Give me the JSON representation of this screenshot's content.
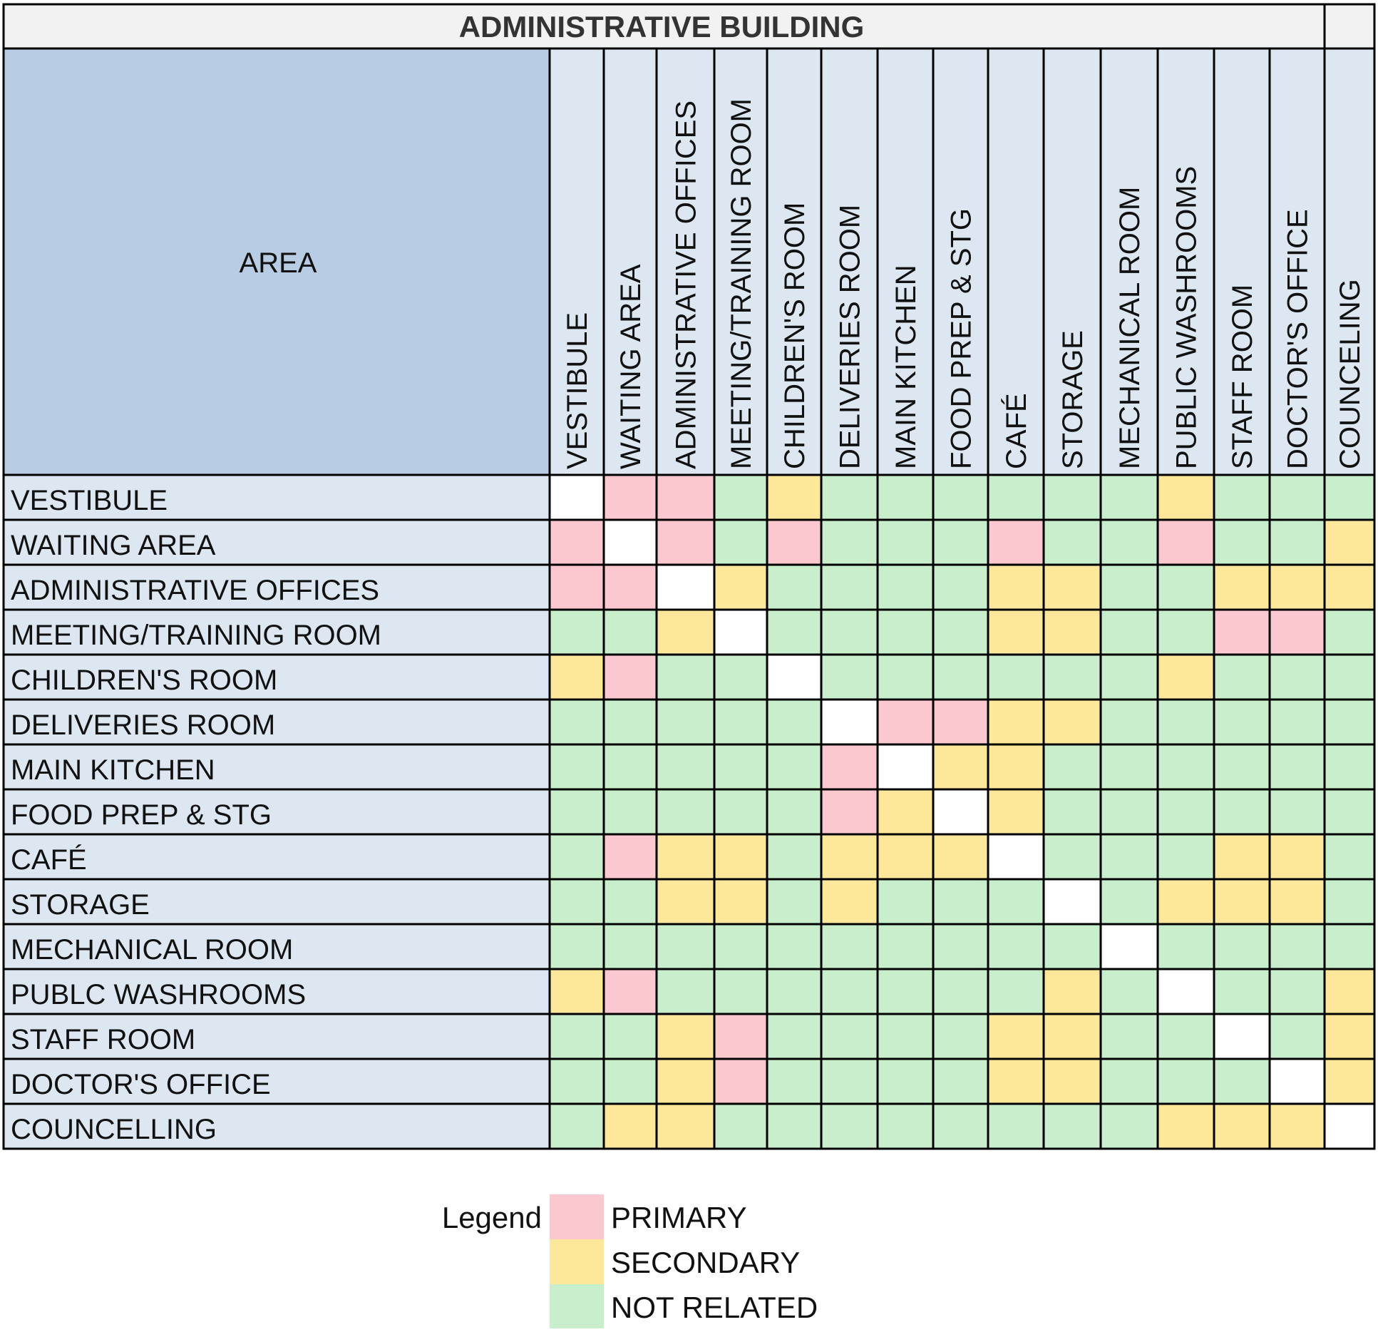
{
  "colors": {
    "primary": "#fcc8d0",
    "secondary": "#fde79b",
    "not_related": "#c8eecb",
    "self": "#ffffff",
    "header_light": "#dde7f1",
    "area_header": "#b8cde3",
    "title_bg": "#f2f2f2",
    "grid_line": "#000000"
  },
  "chart_data": {
    "type": "table",
    "title": "ADMINISTRATIVE BUILDING",
    "corner_label": "AREA",
    "columns": [
      "VESTIBULE",
      "WAITING AREA",
      "ADMINISTRATIVE OFFICES",
      "MEETING/TRAINING ROOM",
      "CHILDREN'S ROOM",
      "DELIVERIES ROOM",
      "MAIN KITCHEN",
      "FOOD PREP & STG",
      "CAFÉ",
      "STORAGE",
      "MECHANICAL ROOM",
      "PUBLIC WASHROOMS",
      "STAFF ROOM",
      "DOCTOR'S OFFICE",
      "COUNCELING"
    ],
    "rows": [
      "VESTIBULE",
      "WAITING AREA",
      "ADMINISTRATIVE OFFICES",
      "MEETING/TRAINING ROOM",
      "CHILDREN'S ROOM",
      "DELIVERIES ROOM",
      "MAIN KITCHEN",
      "FOOD PREP & STG",
      "CAFÉ",
      "STORAGE",
      "MECHANICAL ROOM",
      "PUBLC WASHROOMS",
      "STAFF ROOM",
      "DOCTOR'S OFFICE",
      "COUNCELLING"
    ],
    "value_codes": {
      "0": "self",
      "1": "PRIMARY",
      "2": "SECONDARY",
      "3": "NOT RELATED"
    },
    "matrix": [
      [
        0,
        1,
        1,
        3,
        2,
        3,
        3,
        3,
        3,
        3,
        3,
        2,
        3,
        3,
        3
      ],
      [
        1,
        0,
        1,
        3,
        1,
        3,
        3,
        3,
        1,
        3,
        3,
        1,
        3,
        3,
        2
      ],
      [
        1,
        1,
        0,
        2,
        3,
        3,
        3,
        3,
        2,
        2,
        3,
        3,
        2,
        2,
        2
      ],
      [
        3,
        3,
        2,
        0,
        3,
        3,
        3,
        3,
        2,
        2,
        3,
        3,
        1,
        1,
        3
      ],
      [
        2,
        1,
        3,
        3,
        0,
        3,
        3,
        3,
        3,
        3,
        3,
        2,
        3,
        3,
        3
      ],
      [
        3,
        3,
        3,
        3,
        3,
        0,
        1,
        1,
        2,
        2,
        3,
        3,
        3,
        3,
        3
      ],
      [
        3,
        3,
        3,
        3,
        3,
        1,
        0,
        2,
        2,
        3,
        3,
        3,
        3,
        3,
        3
      ],
      [
        3,
        3,
        3,
        3,
        3,
        1,
        2,
        0,
        2,
        3,
        3,
        3,
        3,
        3,
        3
      ],
      [
        3,
        1,
        2,
        2,
        3,
        2,
        2,
        2,
        0,
        3,
        3,
        3,
        2,
        2,
        3
      ],
      [
        3,
        3,
        2,
        2,
        3,
        2,
        3,
        3,
        3,
        0,
        3,
        2,
        2,
        2,
        3
      ],
      [
        3,
        3,
        3,
        3,
        3,
        3,
        3,
        3,
        3,
        3,
        0,
        3,
        3,
        3,
        3
      ],
      [
        2,
        1,
        3,
        3,
        3,
        3,
        3,
        3,
        3,
        2,
        3,
        0,
        3,
        3,
        2
      ],
      [
        3,
        3,
        2,
        1,
        3,
        3,
        3,
        3,
        2,
        2,
        3,
        3,
        0,
        3,
        2
      ],
      [
        3,
        3,
        2,
        1,
        3,
        3,
        3,
        3,
        2,
        2,
        3,
        3,
        3,
        0,
        2
      ],
      [
        3,
        2,
        2,
        3,
        3,
        3,
        3,
        3,
        3,
        3,
        3,
        2,
        2,
        2,
        0
      ]
    ],
    "legend": {
      "title": "Legend",
      "items": [
        {
          "label": "PRIMARY",
          "code": 1
        },
        {
          "label": "SECONDARY",
          "code": 2
        },
        {
          "label": "NOT RELATED",
          "code": 3
        }
      ]
    }
  }
}
